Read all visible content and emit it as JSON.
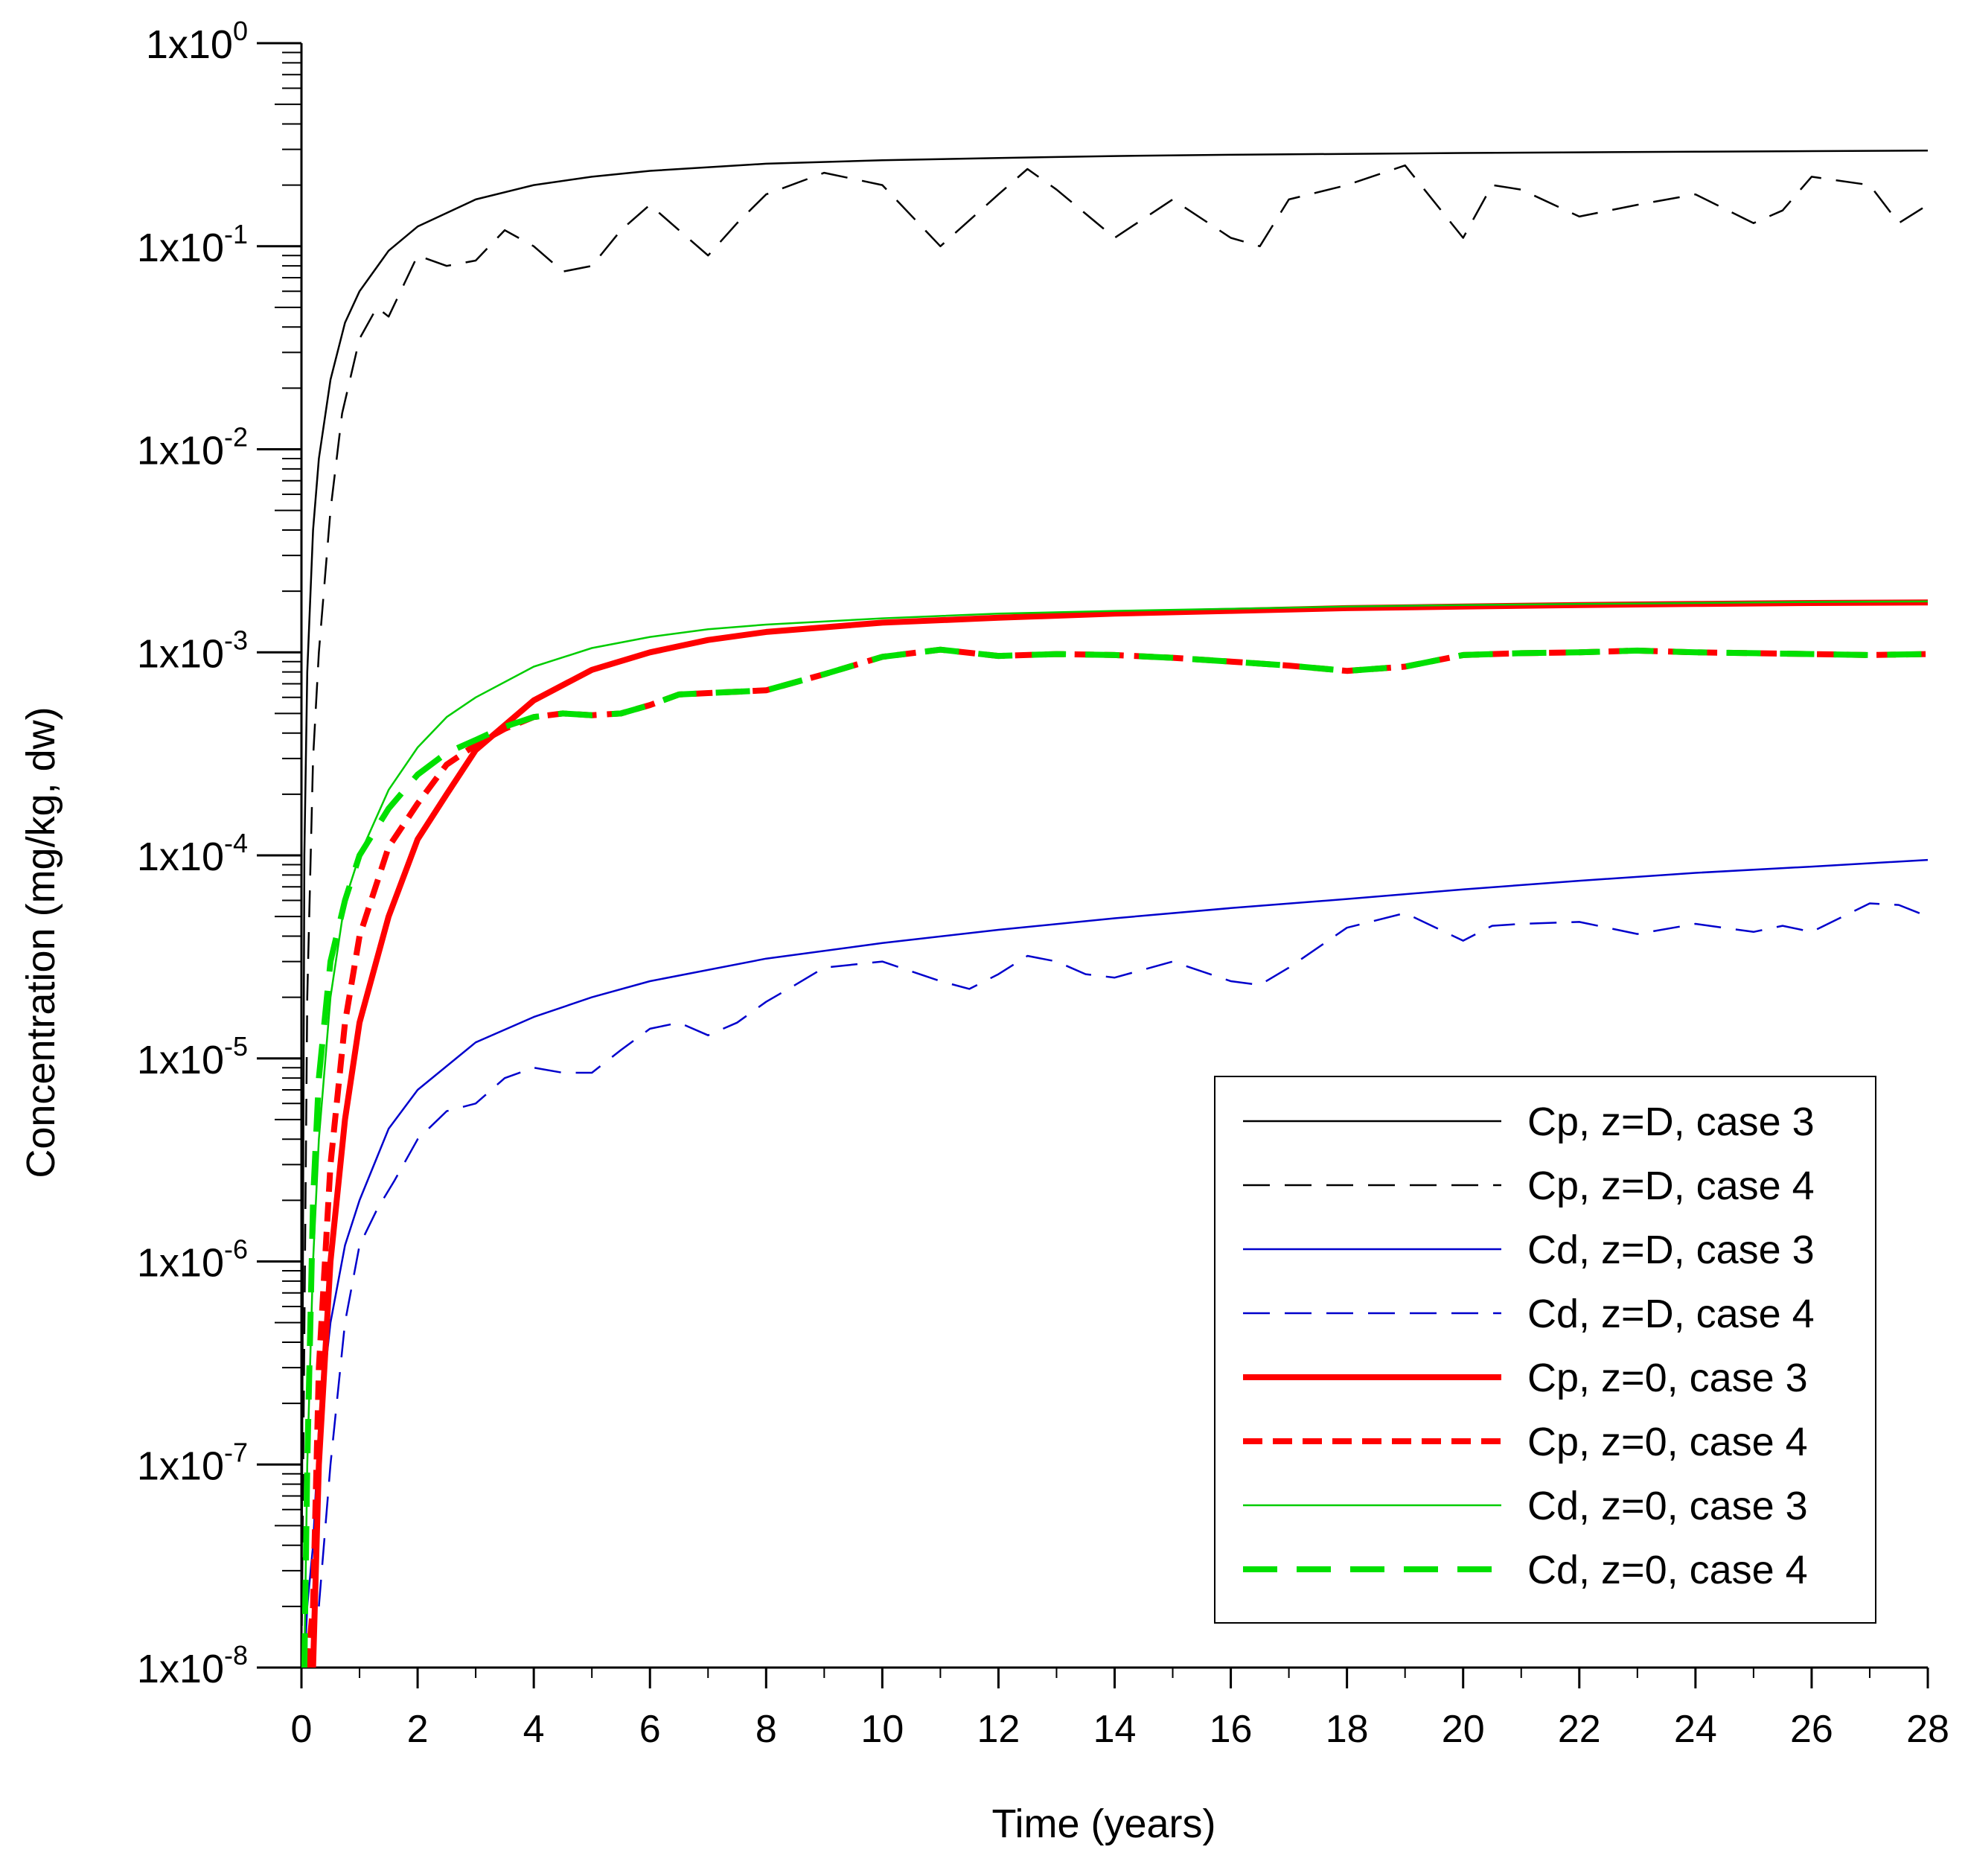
{
  "chart_data": {
    "type": "line",
    "xlabel": "Time (years)",
    "ylabel": "Concentration (mg/kg, dw)",
    "xlim": [
      0,
      28
    ],
    "ylim": [
      1e-08,
      1
    ],
    "yscale": "log",
    "grid": false,
    "legend_position": "bottom-right",
    "x_ticks": [
      0,
      2,
      4,
      6,
      8,
      10,
      12,
      14,
      16,
      18,
      20,
      22,
      24,
      26,
      28
    ],
    "x_tick_labels": [
      "0",
      "2",
      "4",
      "6",
      "8",
      "10",
      "12",
      "14",
      "16",
      "18",
      "20",
      "22",
      "24",
      "26",
      "28"
    ],
    "y_ticks": [
      {
        "base": "1x10",
        "exp": "0",
        "value": 1
      },
      {
        "base": "1x10",
        "exp": "-1",
        "value": 0.1
      },
      {
        "base": "1x10",
        "exp": "-2",
        "value": 0.01
      },
      {
        "base": "1x10",
        "exp": "-3",
        "value": 0.001
      },
      {
        "base": "1x10",
        "exp": "-4",
        "value": 0.0001
      },
      {
        "base": "1x10",
        "exp": "-5",
        "value": 1e-05
      },
      {
        "base": "1x10",
        "exp": "-6",
        "value": 1e-06
      },
      {
        "base": "1x10",
        "exp": "-7",
        "value": 1e-07
      },
      {
        "base": "1x10",
        "exp": "-8",
        "value": 1e-08
      }
    ],
    "series": [
      {
        "name": "Cp, z=D, case 3",
        "color": "#000000",
        "style": "solid",
        "weight": "thin",
        "x": [
          0,
          0.05,
          0.1,
          0.2,
          0.3,
          0.5,
          0.75,
          1,
          1.5,
          2,
          3,
          4,
          5,
          6,
          8,
          10,
          12,
          14,
          16,
          18,
          20,
          22,
          24,
          26,
          28
        ],
        "y": [
          1e-08,
          0.0001,
          0.0008,
          0.004,
          0.009,
          0.022,
          0.042,
          0.06,
          0.095,
          0.125,
          0.17,
          0.2,
          0.22,
          0.235,
          0.255,
          0.265,
          0.272,
          0.278,
          0.282,
          0.285,
          0.288,
          0.29,
          0.292,
          0.294,
          0.296
        ]
      },
      {
        "name": "Cp, z=D, case 4",
        "color": "#000000",
        "style": "dash",
        "weight": "thin",
        "x": [
          0,
          0.1,
          0.2,
          0.3,
          0.5,
          0.7,
          1,
          1.3,
          1.5,
          2,
          2.5,
          3,
          3.5,
          4,
          4.5,
          5,
          5.5,
          6,
          6.5,
          7,
          7.5,
          8,
          9,
          10,
          11,
          12,
          12.5,
          13,
          14,
          15,
          16,
          16.5,
          17,
          18,
          19,
          20,
          20.5,
          21,
          22,
          23,
          24,
          25,
          25.5,
          26,
          27,
          27.5,
          28
        ],
        "y": [
          1e-08,
          2e-05,
          0.0003,
          0.001,
          0.005,
          0.015,
          0.035,
          0.05,
          0.045,
          0.09,
          0.08,
          0.085,
          0.12,
          0.1,
          0.075,
          0.08,
          0.12,
          0.16,
          0.12,
          0.09,
          0.13,
          0.18,
          0.23,
          0.2,
          0.1,
          0.18,
          0.24,
          0.19,
          0.11,
          0.17,
          0.11,
          0.1,
          0.17,
          0.2,
          0.25,
          0.11,
          0.2,
          0.19,
          0.14,
          0.16,
          0.18,
          0.13,
          0.15,
          0.22,
          0.2,
          0.13,
          0.16
        ]
      },
      {
        "name": "Cd, z=D, case 3",
        "color": "#0000CC",
        "style": "solid",
        "weight": "thin",
        "x": [
          0,
          0.05,
          0.1,
          0.2,
          0.3,
          0.5,
          0.75,
          1,
          1.5,
          2,
          3,
          4,
          5,
          6,
          8,
          10,
          12,
          14,
          16,
          18,
          20,
          22,
          24,
          26,
          28
        ],
        "y": [
          1e-08,
          1e-08,
          2e-08,
          4e-08,
          1.5e-07,
          5e-07,
          1.2e-06,
          2e-06,
          4.5e-06,
          7e-06,
          1.2e-05,
          1.6e-05,
          2e-05,
          2.4e-05,
          3.1e-05,
          3.7e-05,
          4.3e-05,
          4.9e-05,
          5.5e-05,
          6.1e-05,
          6.8e-05,
          7.5e-05,
          8.2e-05,
          8.8e-05,
          9.5e-05
        ]
      },
      {
        "name": "Cd, z=D, case 4",
        "color": "#0000CC",
        "style": "dash",
        "weight": "thin",
        "x": [
          0.3,
          0.5,
          0.75,
          1,
          1.3,
          1.6,
          2,
          2.5,
          3,
          3.5,
          4,
          4.5,
          5,
          5.5,
          6,
          6.5,
          7,
          7.5,
          8,
          8.5,
          9,
          10,
          11,
          11.5,
          12,
          12.5,
          13,
          13.5,
          14,
          15,
          16,
          16.5,
          17,
          18,
          19,
          20,
          20.5,
          21,
          22,
          23,
          24,
          25,
          25.5,
          26,
          27,
          27.5,
          28
        ],
        "y": [
          2e-08,
          1e-07,
          5e-07,
          1.2e-06,
          1.8e-06,
          2.5e-06,
          4e-06,
          5.5e-06,
          6e-06,
          8e-06,
          9e-06,
          8.5e-06,
          8.5e-06,
          1.1e-05,
          1.4e-05,
          1.5e-05,
          1.3e-05,
          1.5e-05,
          1.9e-05,
          2.3e-05,
          2.8e-05,
          3e-05,
          2.4e-05,
          2.2e-05,
          2.6e-05,
          3.2e-05,
          3e-05,
          2.6e-05,
          2.5e-05,
          3e-05,
          2.4e-05,
          2.3e-05,
          2.8e-05,
          4.4e-05,
          5.2e-05,
          3.8e-05,
          4.5e-05,
          4.6e-05,
          4.7e-05,
          4.1e-05,
          4.6e-05,
          4.2e-05,
          4.5e-05,
          4.2e-05,
          5.8e-05,
          5.7e-05,
          5e-05
        ]
      },
      {
        "name": "Cp, z=0, case 3",
        "color": "#FF0000",
        "style": "solid",
        "weight": "thick",
        "x": [
          0.2,
          0.3,
          0.5,
          0.75,
          1,
          1.5,
          2,
          2.5,
          3,
          4,
          5,
          6,
          7,
          8,
          10,
          12,
          14,
          16,
          18,
          20,
          22,
          24,
          26,
          28
        ],
        "y": [
          1e-08,
          1e-07,
          1e-06,
          5e-06,
          1.5e-05,
          5e-05,
          0.00012,
          0.0002,
          0.00033,
          0.00058,
          0.00082,
          0.001,
          0.00115,
          0.00126,
          0.0014,
          0.00148,
          0.00155,
          0.0016,
          0.00165,
          0.00168,
          0.00171,
          0.00173,
          0.00175,
          0.00176
        ]
      },
      {
        "name": "Cp, z=0, case 4",
        "color": "#FF0000",
        "style": "dash",
        "weight": "thick",
        "x": [
          0.1,
          0.2,
          0.3,
          0.5,
          0.75,
          1,
          1.5,
          2,
          2.5,
          3,
          3.5,
          4,
          4.5,
          5,
          5.5,
          6,
          6.5,
          7,
          8,
          9,
          10,
          11,
          12,
          13,
          14,
          15,
          16,
          17,
          18,
          19,
          20,
          21,
          22,
          23,
          24,
          25,
          26,
          27,
          28
        ],
        "y": [
          1e-08,
          2e-08,
          3e-07,
          3e-06,
          1.5e-05,
          4e-05,
          0.00011,
          0.00018,
          0.00028,
          0.00035,
          0.00042,
          0.00048,
          0.0005,
          0.00049,
          0.0005,
          0.00055,
          0.00062,
          0.00063,
          0.00065,
          0.00078,
          0.00095,
          0.00103,
          0.00096,
          0.00098,
          0.00097,
          0.00094,
          0.0009,
          0.00086,
          0.00081,
          0.00085,
          0.00097,
          0.00099,
          0.001,
          0.00102,
          0.001,
          0.00099,
          0.00098,
          0.00097,
          0.00098
        ]
      },
      {
        "name": "Cd, z=0, case 3",
        "color": "#00CC00",
        "style": "solid",
        "weight": "thin",
        "x": [
          0.05,
          0.1,
          0.2,
          0.3,
          0.5,
          0.75,
          1,
          1.5,
          2,
          2.5,
          3,
          4,
          5,
          6,
          7,
          8,
          10,
          12,
          14,
          16,
          18,
          20,
          22,
          24,
          26,
          28
        ],
        "y": [
          1e-08,
          1e-07,
          1e-06,
          4e-06,
          2e-05,
          6e-05,
          0.0001,
          0.00021,
          0.00034,
          0.00048,
          0.0006,
          0.00085,
          0.00105,
          0.00119,
          0.0013,
          0.00137,
          0.00147,
          0.00155,
          0.0016,
          0.00164,
          0.00168,
          0.00171,
          0.00173,
          0.00175,
          0.00177,
          0.00178
        ]
      },
      {
        "name": "Cd, z=0, case 4",
        "color": "#00E000",
        "style": "longdash",
        "weight": "thick",
        "x": [
          0.05,
          0.1,
          0.2,
          0.3,
          0.5,
          0.75,
          1,
          1.5,
          2,
          2.5,
          3,
          3.5,
          4,
          4.5,
          5,
          5.5,
          6,
          6.5,
          7,
          8,
          9,
          10,
          11,
          12,
          13,
          14,
          15,
          16,
          17,
          18,
          19,
          20,
          21,
          22,
          23,
          24,
          25,
          26,
          27,
          28
        ],
        "y": [
          1e-08,
          1e-07,
          2e-06,
          8e-06,
          3e-05,
          6e-05,
          0.0001,
          0.00017,
          0.00025,
          0.00032,
          0.00037,
          0.00043,
          0.00048,
          0.0005,
          0.00049,
          0.0005,
          0.00055,
          0.00062,
          0.00063,
          0.00065,
          0.00078,
          0.00095,
          0.00103,
          0.00096,
          0.00098,
          0.00097,
          0.00094,
          0.0009,
          0.00086,
          0.00081,
          0.00085,
          0.00097,
          0.00099,
          0.001,
          0.00102,
          0.001,
          0.00099,
          0.00098,
          0.00097,
          0.00098
        ]
      }
    ]
  }
}
